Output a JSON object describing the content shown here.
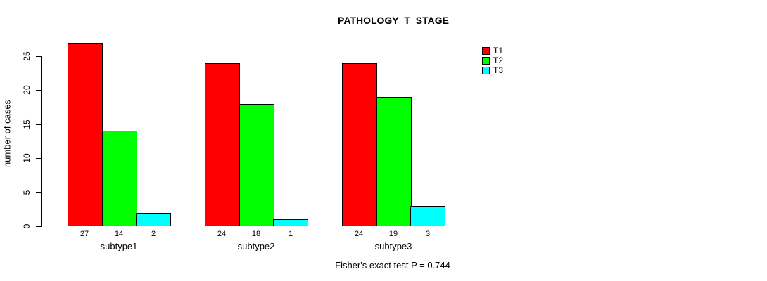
{
  "chart_data": {
    "type": "bar",
    "title": "PATHOLOGY_T_STAGE",
    "ylabel": "number of cases",
    "xlabel": "",
    "categories": [
      "subtype1",
      "subtype2",
      "subtype3"
    ],
    "series": [
      {
        "name": "T1",
        "color": "#FF0000",
        "values": [
          27,
          24,
          24
        ]
      },
      {
        "name": "T2",
        "color": "#00FF00",
        "values": [
          14,
          18,
          19
        ]
      },
      {
        "name": "T3",
        "color": "#00FFFF",
        "values": [
          2,
          1,
          3
        ]
      }
    ],
    "bar_value_labels": [
      [
        "27",
        "14",
        "2"
      ],
      [
        "24",
        "18",
        "1"
      ],
      [
        "24",
        "19",
        "3"
      ]
    ],
    "y_ticks": [
      0,
      5,
      10,
      15,
      20,
      25
    ],
    "ylim": [
      0,
      27
    ],
    "grid": false,
    "legend_position": "topright",
    "legend_entries": [
      "T1",
      "T2",
      "T3"
    ]
  },
  "caption": "Fisher's exact test P = 0.744",
  "colors": {
    "background": "#FFFFFF",
    "axis": "#000000",
    "text": "#000000",
    "t1": "#FF0000",
    "t2": "#00FF00",
    "t3": "#00FFFF"
  }
}
